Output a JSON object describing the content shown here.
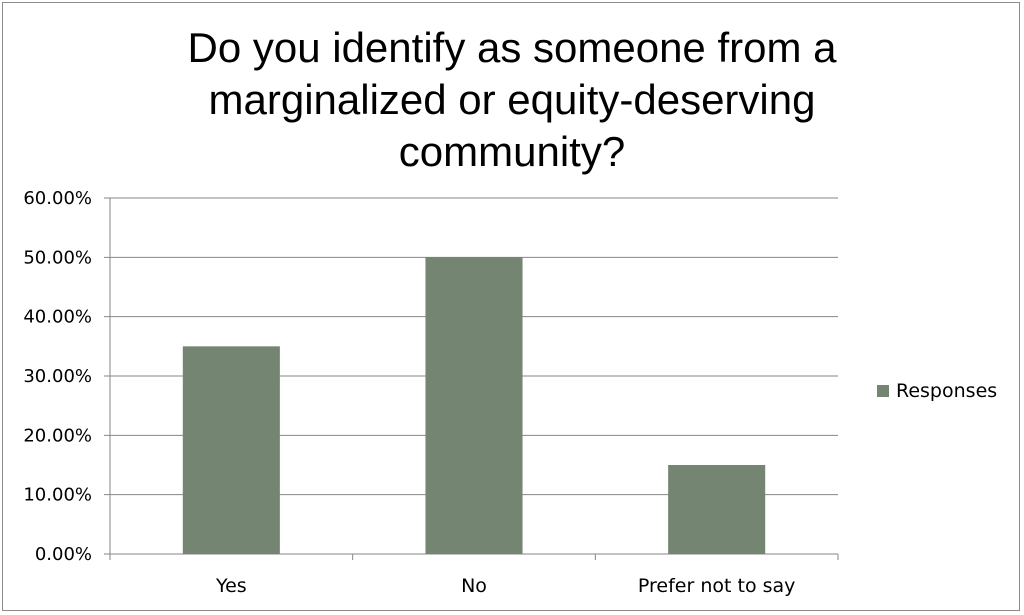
{
  "chart_data": {
    "type": "bar",
    "title": "Do you identify as someone from a marginalized or equity-deserving community?",
    "title_lines": [
      "Do you identify as someone from a",
      "marginalized or equity-deserving",
      "community?"
    ],
    "categories": [
      "Yes",
      "No",
      "Prefer not to say"
    ],
    "series": [
      {
        "name": "Responses",
        "values": [
          0.35,
          0.5,
          0.15
        ]
      }
    ],
    "ylim": [
      0,
      0.6
    ],
    "yticks": [
      0,
      0.1,
      0.2,
      0.3,
      0.4,
      0.5,
      0.6
    ],
    "ytick_labels": [
      "0.00%",
      "10.00%",
      "20.00%",
      "30.00%",
      "40.00%",
      "50.00%",
      "60.00%"
    ],
    "xlabel": "",
    "ylabel": "",
    "grid": true,
    "legend_position": "right",
    "colors": {
      "bar": "#748571",
      "grid": "#868686",
      "axis": "#868686"
    }
  }
}
